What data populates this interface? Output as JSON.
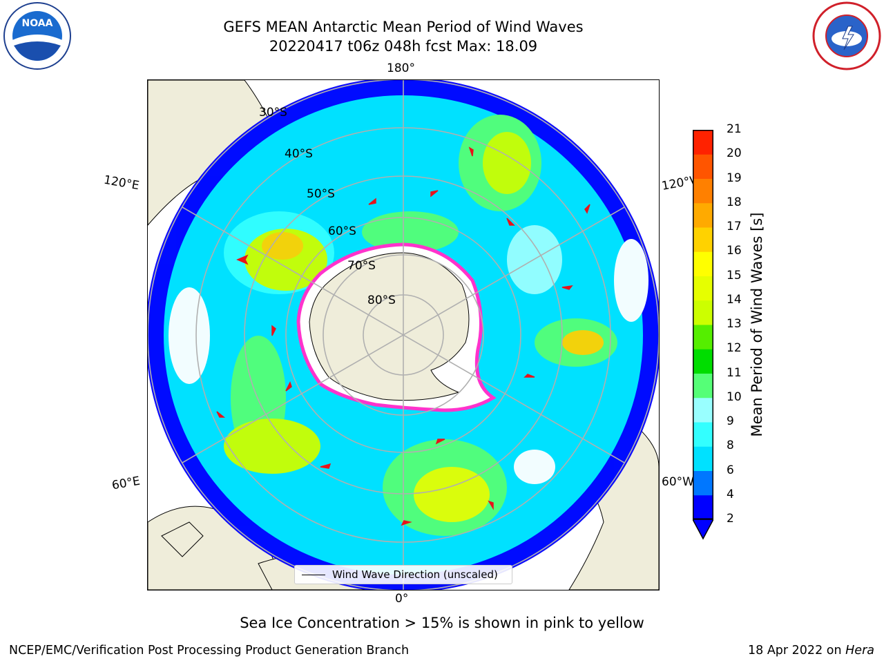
{
  "title": {
    "line1": "GEFS MEAN Antarctic Mean Period of Wind Waves",
    "line2": "20220417 t06z 048h fcst   Max: 18.09"
  },
  "logos": {
    "left": "noaa-logo",
    "right": "nws-logo"
  },
  "map": {
    "projection": "south-polar-stereographic",
    "lon_labels": {
      "top": "180°",
      "bottom": "0°",
      "upper_left": "120°E",
      "upper_right": "120°W",
      "lower_left": "60°E",
      "lower_right": "60°W"
    },
    "lat_labels": [
      "30°S",
      "40°S",
      "50°S",
      "60°S",
      "70°S",
      "80°S"
    ],
    "legend_label": "Wind Wave Direction (unscaled)",
    "colors": {
      "land": "#efedda",
      "arrow": "#e8121a",
      "ice_edge": "#ff33cc",
      "grid": "#b0b0b0"
    }
  },
  "colorbar": {
    "label": "Mean Period of Wind Waves [s]",
    "ticks": [
      "2",
      "4",
      "6",
      "8",
      "9",
      "10",
      "11",
      "12",
      "13",
      "14",
      "15",
      "16",
      "17",
      "18",
      "19",
      "20",
      "21"
    ],
    "colors": [
      "#0000ff",
      "#0077ff",
      "#00e1ff",
      "#33ffff",
      "#99ffff",
      "#55ff77",
      "#00dd00",
      "#55ee00",
      "#ccff00",
      "#e6ff00",
      "#ffff00",
      "#ffd200",
      "#ffaa00",
      "#ff8000",
      "#ff5500",
      "#ff2200",
      "#ff0000"
    ]
  },
  "footnote": "Sea Ice Concentration > 15% is shown in pink to yellow",
  "credit": "NCEP/EMC/Verification Post Processing Product Generation Branch",
  "date": {
    "text": "18 Apr 2022 on ",
    "machine": "Hera"
  }
}
